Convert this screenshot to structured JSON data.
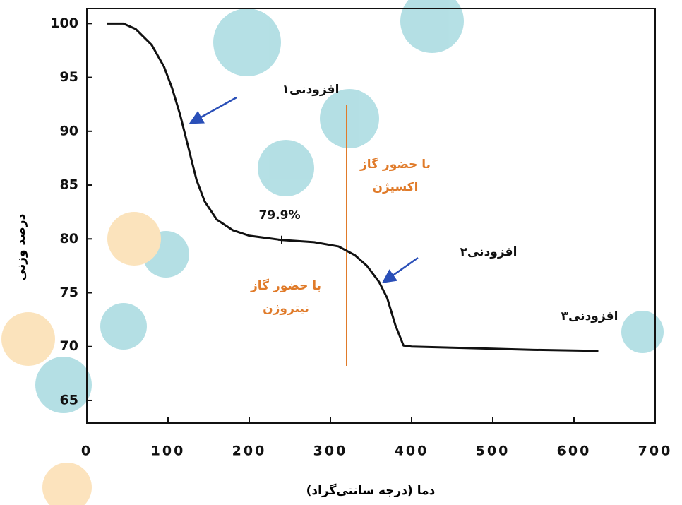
{
  "chart_data": {
    "type": "line",
    "x_label": "دما (درجه سانتی‌گراد)",
    "y_label": "درصد وزنی",
    "x": [
      25,
      45,
      60,
      80,
      95,
      105,
      115,
      125,
      135,
      145,
      160,
      180,
      200,
      240,
      280,
      310,
      330,
      345,
      360,
      370,
      380,
      390,
      400,
      450,
      500,
      550,
      630
    ],
    "series": [
      {
        "color": "#111111",
        "values": [
          100,
          100,
          99.5,
          98,
          96,
          94,
          91.5,
          88.5,
          85.5,
          83.5,
          81.8,
          80.8,
          80.3,
          79.9,
          79.7,
          79.3,
          78.5,
          77.5,
          76,
          74.5,
          72,
          70.1,
          70,
          69.9,
          69.8,
          69.7,
          69.6
        ]
      }
    ],
    "xlim": [
      0,
      700
    ],
    "xticks": [
      0,
      100,
      200,
      300,
      400,
      500,
      600,
      700
    ],
    "ylim": [
      62.9,
      101.4
    ],
    "yticks": [
      65,
      70,
      75,
      80,
      85,
      90,
      95,
      100
    ],
    "marker": {
      "x": 240,
      "y": 79.9,
      "label": "79.9%"
    },
    "vline": {
      "x": 320,
      "color": "#e07b2a"
    },
    "annotations": [
      {
        "lines": [
          "افزودنی۱"
        ],
        "color": "#111111"
      },
      {
        "lines": [
          "افزودنی۲"
        ],
        "color": "#111111"
      },
      {
        "lines": [
          "افزودنی۳"
        ],
        "color": "#111111"
      },
      {
        "lines": [
          "با حضور گاز",
          "اکسیژن"
        ],
        "color": "#e07b2a"
      },
      {
        "lines": [
          "با حضور گاز",
          "نیتروژن"
        ],
        "color": "#e07b2a"
      }
    ]
  }
}
